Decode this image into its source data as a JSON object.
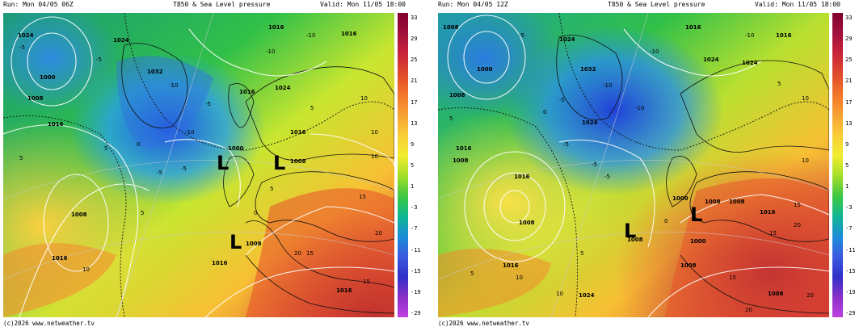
{
  "panels": [
    {
      "run": "Run: Mon 04/05 06Z",
      "title": "T850 & Sea Level pressure",
      "valid": "Valid: Mon 11/05 18:00",
      "footer": "(c)2026 www.netweather.tv",
      "lows": [
        "L",
        "L",
        "L"
      ],
      "pressure_labels": [
        "1024",
        "1032",
        "1000",
        "1008",
        "1016",
        "1024",
        "1016",
        "1016",
        "1000",
        "1016",
        "1024",
        "1016",
        "1008",
        "1008",
        "1016",
        "1008",
        "1016",
        "1016"
      ],
      "temp_labels": [
        "-5",
        "-5",
        "-10",
        "-10",
        "-10",
        "-5",
        "-10",
        "-5",
        "0",
        "5",
        "5",
        "5",
        "10",
        "10",
        "10",
        "15",
        "15",
        "20",
        "10",
        "5",
        "0",
        "-5",
        "5",
        "15",
        "20"
      ]
    },
    {
      "run": "Run: Mon 04/05 12Z",
      "title": "T850 & Sea Level pressure",
      "valid": "Valid: Mon 11/05 18:00",
      "footer": "(c)2026 www.netweather.tv",
      "lows": [
        "L",
        "L"
      ],
      "pressure_labels": [
        "1008",
        "1008",
        "1000",
        "1024",
        "1032",
        "1024",
        "1016",
        "1016",
        "1024",
        "1024",
        "1016",
        "1008",
        "1016",
        "1008",
        "1000",
        "1008",
        "1008",
        "1000",
        "1008",
        "1016",
        "1008",
        "1016",
        "1024",
        "1008"
      ],
      "temp_labels": [
        "-5",
        "-10",
        "-10",
        "-10",
        "-10",
        "-5",
        "-5",
        "-5",
        "0",
        "5",
        "5",
        "5",
        "10",
        "10",
        "10",
        "15",
        "15",
        "20",
        "20",
        "0",
        "-5",
        "5",
        "10",
        "15",
        "20"
      ]
    }
  ],
  "colorbar": {
    "labels": [
      "33",
      "29",
      "25",
      "21",
      "17",
      "13",
      "9",
      "5",
      "1",
      "-3",
      "-7",
      "-11",
      "-15",
      "-19",
      "-29"
    ],
    "colors": [
      "#800030",
      "#a0103a",
      "#c8243a",
      "#e04a2c",
      "#f2752a",
      "#f7a032",
      "#f8cc38",
      "#f2ec30",
      "#a8e028",
      "#40c840",
      "#10b890",
      "#1a8ed8",
      "#3a5ae0",
      "#3030c8",
      "#8a30c8",
      "#c040e0"
    ]
  }
}
